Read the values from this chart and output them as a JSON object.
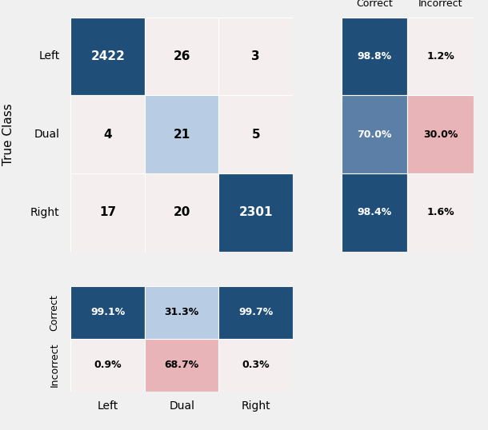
{
  "cm_values": [
    [
      2422,
      26,
      3
    ],
    [
      4,
      21,
      5
    ],
    [
      17,
      20,
      2301
    ]
  ],
  "cm_labels": [
    "Left",
    "Dual",
    "Right"
  ],
  "row_pct_correct": [
    98.8,
    70.0,
    98.4
  ],
  "row_pct_incorrect": [
    1.2,
    30.0,
    1.6
  ],
  "col_pct_correct": [
    99.1,
    31.3,
    99.7
  ],
  "col_pct_incorrect": [
    0.9,
    68.7,
    0.3
  ],
  "dark_blue": "#1f4e79",
  "medium_blue": "#5b7fa6",
  "light_blue": "#b8cce4",
  "very_light": "#f5eeee",
  "light_pink": "#e8b4b8",
  "background": "#f0f0f0",
  "cm_cell_colors": [
    [
      "#1f4e79",
      "#f5eeee",
      "#f5eeee"
    ],
    [
      "#f5eeee",
      "#b8cce4",
      "#f5eeee"
    ],
    [
      "#f5eeee",
      "#f5eeee",
      "#1f4e79"
    ]
  ],
  "cm_text_colors": [
    [
      "white",
      "black",
      "black"
    ],
    [
      "black",
      "black",
      "black"
    ],
    [
      "black",
      "black",
      "white"
    ]
  ],
  "row_correct_colors": [
    "#1f4e79",
    "#5b7fa6",
    "#1f4e79"
  ],
  "row_incorrect_colors": [
    "#f5eeee",
    "#e8b4b8",
    "#f5eeee"
  ],
  "row_text_correct": [
    "white",
    "white",
    "white"
  ],
  "row_text_incorrect": [
    "black",
    "black",
    "black"
  ],
  "col_correct_colors": [
    "#1f4e79",
    "#b8cce4",
    "#1f4e79"
  ],
  "col_incorrect_colors": [
    "#f5eeee",
    "#e8b4b8",
    "#f5eeee"
  ],
  "col_text_correct": [
    "white",
    "black",
    "white"
  ],
  "col_text_incorrect": [
    "black",
    "black",
    "black"
  ]
}
